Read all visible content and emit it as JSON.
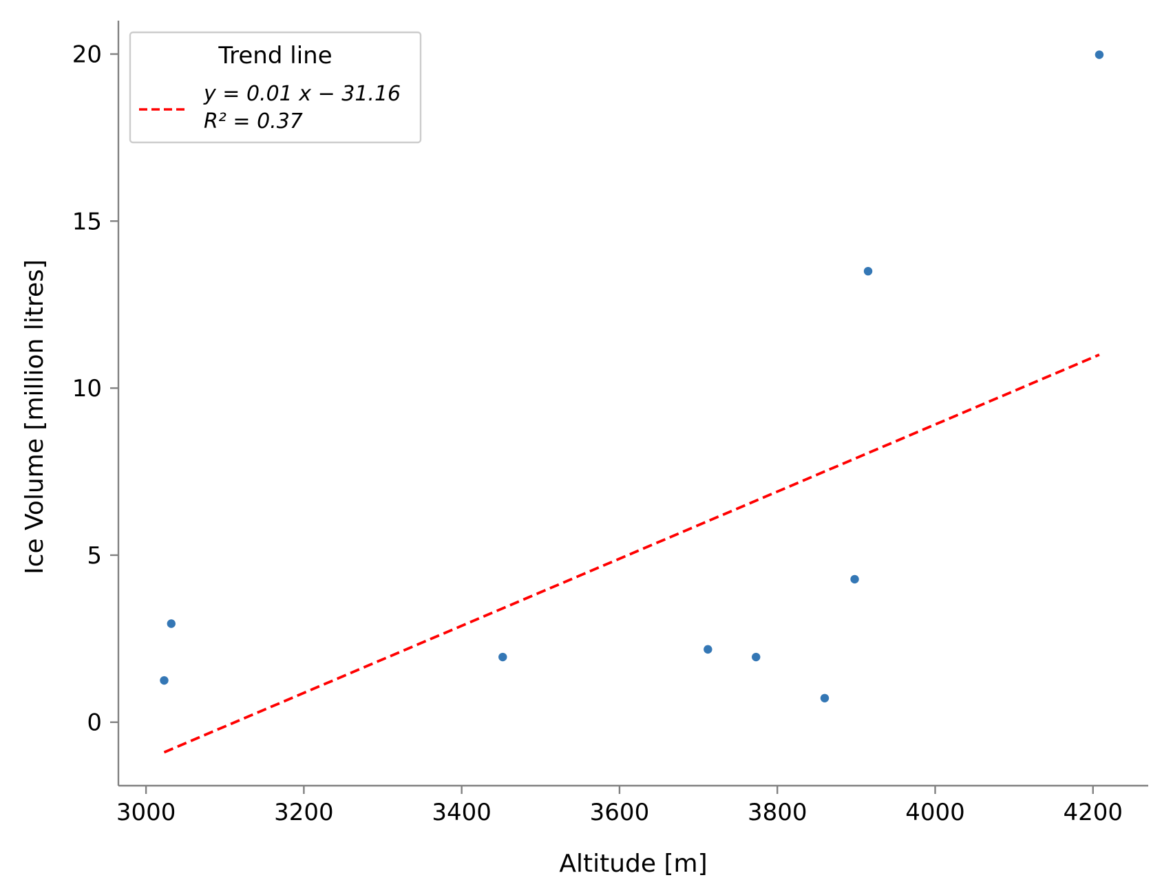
{
  "chart_data": {
    "type": "scatter",
    "xlabel": "Altitude [m]",
    "ylabel": "Ice Volume [million litres]",
    "xlim": [
      2965,
      4270
    ],
    "ylim": [
      -1.9,
      21.0
    ],
    "xticks": [
      3000,
      3200,
      3400,
      3600,
      3800,
      4000,
      4200
    ],
    "yticks": [
      0,
      5,
      10,
      15,
      20
    ],
    "grid": false,
    "points": [
      {
        "x": 3023,
        "y": 1.25
      },
      {
        "x": 3032,
        "y": 2.95
      },
      {
        "x": 3452,
        "y": 1.95
      },
      {
        "x": 3712,
        "y": 2.18
      },
      {
        "x": 3773,
        "y": 1.95
      },
      {
        "x": 3860,
        "y": 0.72
      },
      {
        "x": 3898,
        "y": 4.28
      },
      {
        "x": 3915,
        "y": 13.5
      },
      {
        "x": 4208,
        "y": 19.98
      }
    ],
    "trend": {
      "slope": 0.01,
      "intercept": -31.16,
      "x_start": 3023,
      "x_end": 4208,
      "y_start": -0.9,
      "y_end": 11.0,
      "style": "dashed",
      "color": "#ff0000"
    },
    "point_color": "#3477b5",
    "legend": {
      "placement": "top-left",
      "title": "Trend line",
      "line1": "y = 0.01 x − 31.16",
      "line2": "R² = 0.37"
    }
  }
}
